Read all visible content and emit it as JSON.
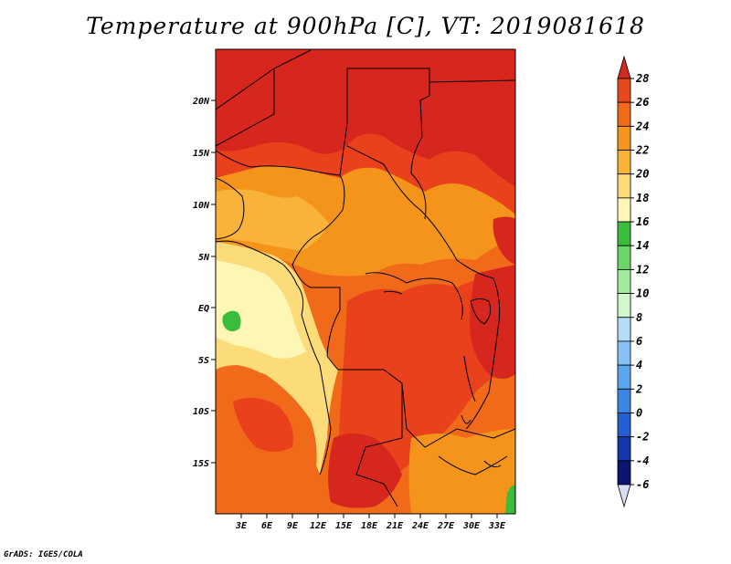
{
  "title": "Temperature at 900hPa [C], VT: 2019081618",
  "credit": "GrADS: IGES/COLA",
  "lat_labels": [
    "20N",
    "15N",
    "10N",
    "5N",
    "EQ",
    "5S",
    "10S",
    "15S"
  ],
  "lon_labels": [
    "3E",
    "6E",
    "9E",
    "12E",
    "15E",
    "18E",
    "21E",
    "24E",
    "27E",
    "30E",
    "33E"
  ],
  "colorbar": {
    "labels": [
      "28",
      "26",
      "24",
      "22",
      "20",
      "18",
      "16",
      "14",
      "12",
      "10",
      "8",
      "6",
      "4",
      "2",
      "0",
      "-2",
      "-4",
      "-6"
    ],
    "colors": [
      "#d22b1e",
      "#e64a1c",
      "#f06a1a",
      "#f5941b",
      "#f8b338",
      "#fcdc79",
      "#fdf6b4",
      "#3cbc3c",
      "#6ad66a",
      "#a0eb9e",
      "#d2f7cc",
      "#b4dcf8",
      "#86c2f4",
      "#5aa6ee",
      "#3a86e2",
      "#2560d3",
      "#1238aa",
      "#0b1570",
      "#d8dcf8"
    ]
  },
  "map_colors": {
    "c28": "#d7261e",
    "c26": "#e8411c",
    "c24": "#f06a1a",
    "c22": "#f5941b",
    "c20": "#f8b338",
    "c18": "#fcdc79",
    "c16": "#fdf6b4",
    "c14": "#3cbc3c"
  }
}
